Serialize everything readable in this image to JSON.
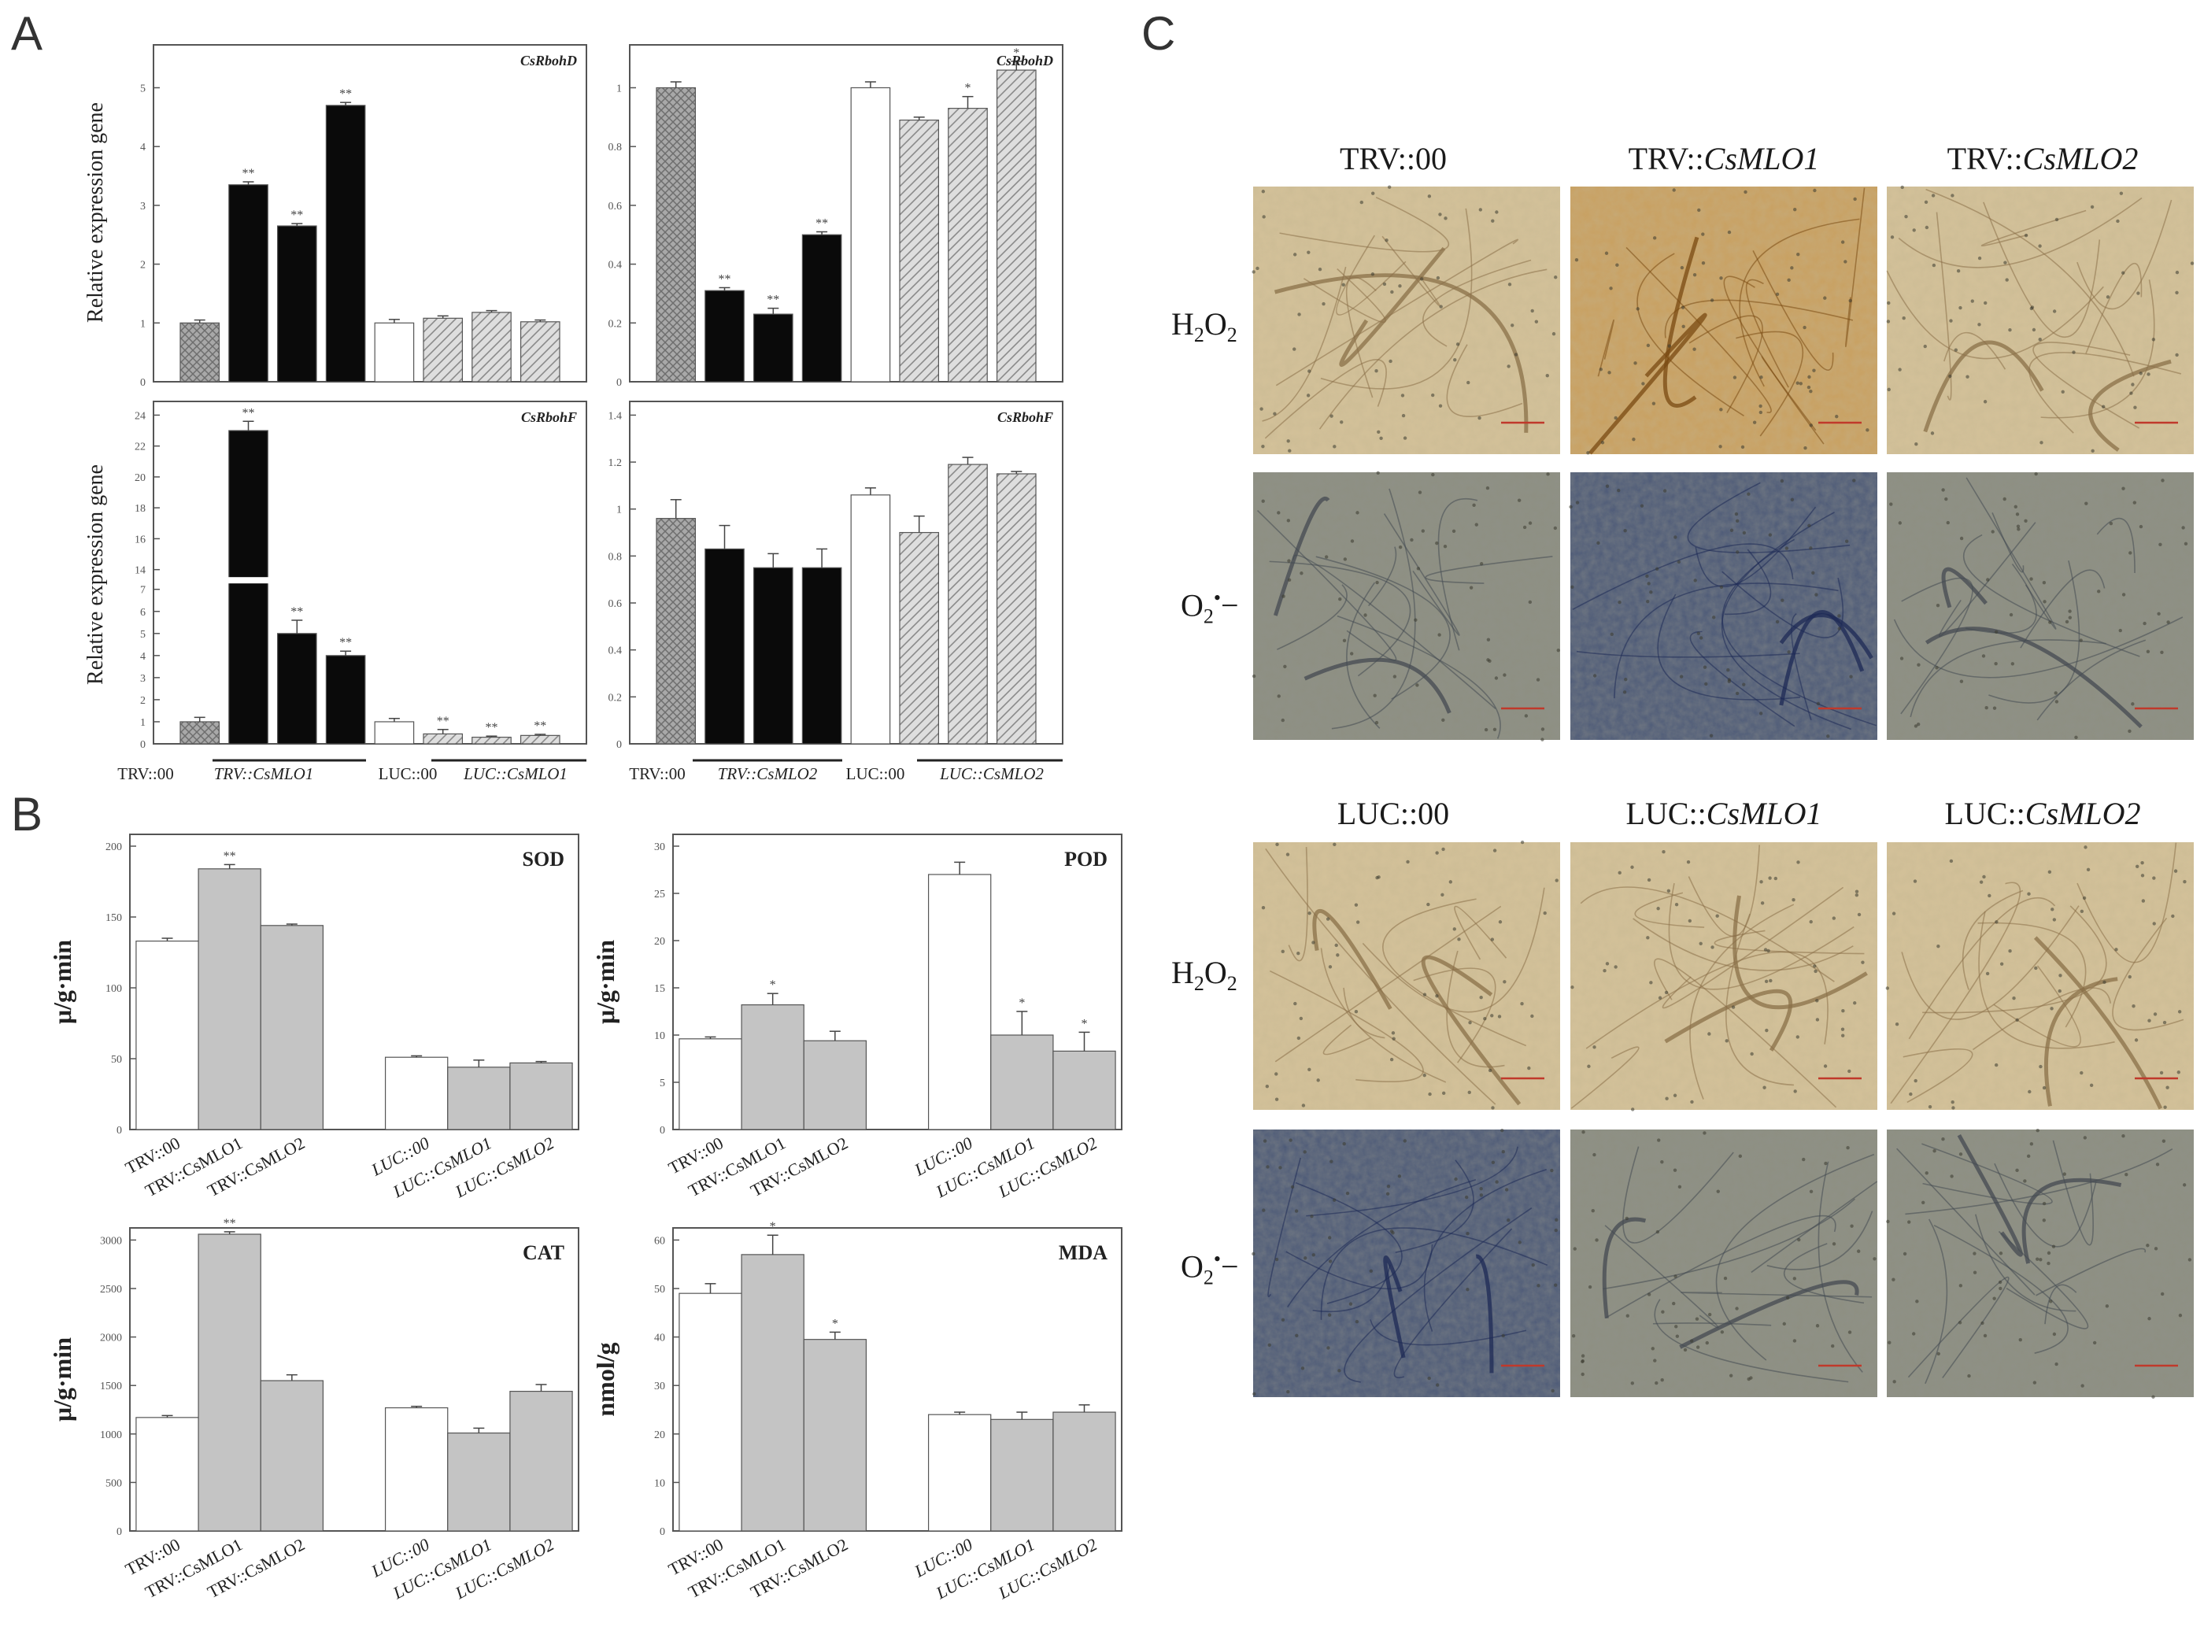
{
  "panel_letters": [
    "A",
    "B",
    "C"
  ],
  "panelA": {
    "ylabel": "Relative expression gene",
    "bottom_left": {
      "labels": [
        "TRV::00",
        "TRV::CsMLO1",
        "LUC::00",
        "LUC::CsMLO1"
      ]
    },
    "bottom_right": {
      "labels": [
        "TRV::00",
        "TRV::CsMLO2",
        "LUC::00",
        "LUC::CsMLO2"
      ]
    }
  },
  "panelB": {
    "categories": [
      "TRV::00",
      "TRV::CsMLO1",
      "TRV::CsMLO2",
      "LUC::00",
      "LUC::CsMLO1",
      "LUC::CsMLO2"
    ]
  },
  "panelC": {
    "columns_top": [
      "TRV::00",
      "TRV::CsMLO1",
      "TRV::CsMLO2"
    ],
    "columns_bottom": [
      "LUC::00",
      "LUC::CsMLO1",
      "LUC::CsMLO2"
    ],
    "rows": [
      "H2O2",
      "O2•−"
    ]
  },
  "colors": {
    "black_bar": "#0a0a0a",
    "white_bar": "#ffffff",
    "gray_bar": "#c4c4c4",
    "checker_bar": "#9a9a9a",
    "hatch_bar": "#d6d6d6",
    "axis": "#555555",
    "h2o2_tan": "#cdb98a",
    "o2_gray": "#8f9080"
  },
  "chart_data": [
    {
      "type": "bar",
      "panel": "A",
      "title": "CsRbohD",
      "ylabel": "Relative expression gene",
      "ylim": [
        0,
        5.5
      ],
      "yticks": [
        0,
        1,
        2,
        3,
        4,
        5
      ],
      "categories": [
        "TRV::00",
        "TRV::CsMLO1",
        "TRV::CsMLO1",
        "TRV::CsMLO1",
        "LUC::00",
        "LUC::CsMLO1",
        "LUC::CsMLO1",
        "LUC::CsMLO1"
      ],
      "values": [
        1.0,
        3.35,
        2.65,
        4.7,
        1.0,
        1.08,
        1.18,
        1.02
      ],
      "errors": [
        0.05,
        0.05,
        0.04,
        0.05,
        0.06,
        0.04,
        0.03,
        0.03
      ],
      "significance": [
        "",
        "**",
        "**",
        "**",
        "",
        "",
        "",
        ""
      ],
      "fills": [
        "checker",
        "black",
        "black",
        "black",
        "white",
        "hatch",
        "hatch",
        "hatch"
      ]
    },
    {
      "type": "bar",
      "panel": "A",
      "title": "CsRbohD",
      "ylim": [
        0,
        1.1
      ],
      "yticks": [
        0,
        0.2,
        0.4,
        0.6,
        0.8,
        1.0
      ],
      "categories": [
        "TRV::00",
        "TRV::CsMLO2",
        "TRV::CsMLO2",
        "TRV::CsMLO2",
        "LUC::00",
        "LUC::CsMLO2",
        "LUC::CsMLO2",
        "LUC::CsMLO2"
      ],
      "values": [
        1.0,
        0.31,
        0.23,
        0.5,
        1.0,
        0.89,
        0.93,
        1.06
      ],
      "errors": [
        0.02,
        0.01,
        0.02,
        0.01,
        0.02,
        0.01,
        0.04,
        0.03
      ],
      "significance": [
        "",
        "**",
        "**",
        "**",
        "",
        "",
        "*",
        "*"
      ],
      "fills": [
        "checker",
        "black",
        "black",
        "black",
        "white",
        "hatch",
        "hatch",
        "hatch"
      ]
    },
    {
      "type": "bar",
      "panel": "A",
      "title": "CsRbohF",
      "ylabel": "Relative expression gene",
      "ylim": [
        0,
        24
      ],
      "y_broken": true,
      "yticks": [
        0,
        1,
        2,
        3,
        4,
        5,
        6,
        7,
        14,
        16,
        18,
        20,
        22,
        24
      ],
      "categories": [
        "TRV::00",
        "TRV::CsMLO1",
        "TRV::CsMLO1",
        "TRV::CsMLO1",
        "LUC::00",
        "LUC::CsMLO1",
        "LUC::CsMLO1",
        "LUC::CsMLO1"
      ],
      "values": [
        1.0,
        23.0,
        5.0,
        4.0,
        1.0,
        0.45,
        0.3,
        0.38
      ],
      "errors": [
        0.2,
        0.6,
        0.6,
        0.2,
        0.15,
        0.2,
        0.05,
        0.05
      ],
      "significance": [
        "",
        "**",
        "**",
        "**",
        "",
        "**",
        "**",
        "**"
      ],
      "fills": [
        "checker",
        "black",
        "black",
        "black",
        "white",
        "hatch",
        "hatch",
        "hatch"
      ]
    },
    {
      "type": "bar",
      "panel": "A",
      "title": "CsRbohF",
      "ylim": [
        0,
        1.4
      ],
      "yticks": [
        0,
        0.2,
        0.4,
        0.6,
        0.8,
        1.0,
        1.2,
        1.4
      ],
      "categories": [
        "TRV::00",
        "TRV::CsMLO2",
        "TRV::CsMLO2",
        "TRV::CsMLO2",
        "LUC::00",
        "LUC::CsMLO2",
        "LUC::CsMLO2",
        "LUC::CsMLO2"
      ],
      "values": [
        0.96,
        0.83,
        0.75,
        0.75,
        1.06,
        0.9,
        1.19,
        1.15
      ],
      "errors": [
        0.08,
        0.1,
        0.06,
        0.08,
        0.03,
        0.07,
        0.03,
        0.01
      ],
      "significance": [
        "",
        "",
        "",
        "",
        "",
        "",
        "",
        ""
      ],
      "fills": [
        "checker",
        "black",
        "black",
        "black",
        "white",
        "hatch",
        "hatch",
        "hatch"
      ]
    },
    {
      "type": "bar",
      "panel": "B",
      "title": "SOD",
      "ylabel": "μ/g·min",
      "ylim": [
        0,
        200
      ],
      "yticks": [
        0,
        50,
        100,
        150,
        200
      ],
      "categories": [
        "TRV::00",
        "TRV::CsMLO1",
        "TRV::CsMLO2",
        "LUC::00",
        "LUC::CsMLO1",
        "LUC::CsMLO2"
      ],
      "values": [
        133,
        184,
        144,
        51,
        44,
        47
      ],
      "errors": [
        2,
        3,
        1,
        1,
        5,
        1
      ],
      "significance": [
        "",
        "**",
        "",
        "",
        "",
        ""
      ],
      "fills": [
        "white",
        "gray",
        "gray",
        "white",
        "gray",
        "gray"
      ]
    },
    {
      "type": "bar",
      "panel": "B",
      "title": "POD",
      "ylabel": "μ/g·min",
      "ylim": [
        0,
        30
      ],
      "yticks": [
        0,
        5,
        10,
        15,
        20,
        25,
        30
      ],
      "categories": [
        "TRV::00",
        "TRV::CsMLO1",
        "TRV::CsMLO2",
        "LUC::00",
        "LUC::CsMLO1",
        "LUC::CsMLO2"
      ],
      "values": [
        9.6,
        13.2,
        9.4,
        27.0,
        10.0,
        8.3
      ],
      "errors": [
        0.2,
        1.2,
        1.0,
        1.3,
        2.5,
        2.0
      ],
      "significance": [
        "",
        "*",
        "",
        "",
        "*",
        "*"
      ],
      "fills": [
        "white",
        "gray",
        "gray",
        "white",
        "gray",
        "gray"
      ]
    },
    {
      "type": "bar",
      "panel": "B",
      "title": "CAT",
      "ylabel": "μ/g·min",
      "ylim": [
        0,
        3000
      ],
      "yticks": [
        0,
        500,
        1000,
        1500,
        2000,
        2500,
        3000
      ],
      "categories": [
        "TRV::00",
        "TRV::CsMLO1",
        "TRV::CsMLO2",
        "LUC::00",
        "LUC::CsMLO1",
        "LUC::CsMLO2"
      ],
      "values": [
        1170,
        3060,
        1550,
        1270,
        1010,
        1440
      ],
      "errors": [
        20,
        25,
        60,
        15,
        50,
        70
      ],
      "significance": [
        "",
        "**",
        "",
        "",
        "",
        ""
      ],
      "fills": [
        "white",
        "gray",
        "gray",
        "white",
        "gray",
        "gray"
      ]
    },
    {
      "type": "bar",
      "panel": "B",
      "title": "MDA",
      "ylabel": "nmol/g",
      "ylim": [
        0,
        60
      ],
      "yticks": [
        0,
        10,
        20,
        30,
        40,
        50,
        60
      ],
      "categories": [
        "TRV::00",
        "TRV::CsMLO1",
        "TRV::CsMLO2",
        "LUC::00",
        "LUC::CsMLO1",
        "LUC::CsMLO2"
      ],
      "values": [
        49,
        57,
        39.5,
        24,
        23,
        24.5
      ],
      "errors": [
        2,
        4,
        1.5,
        0.5,
        1.5,
        1.5
      ],
      "significance": [
        "",
        "*",
        "*",
        "",
        "",
        ""
      ],
      "fills": [
        "white",
        "gray",
        "gray",
        "white",
        "gray",
        "gray"
      ]
    }
  ]
}
